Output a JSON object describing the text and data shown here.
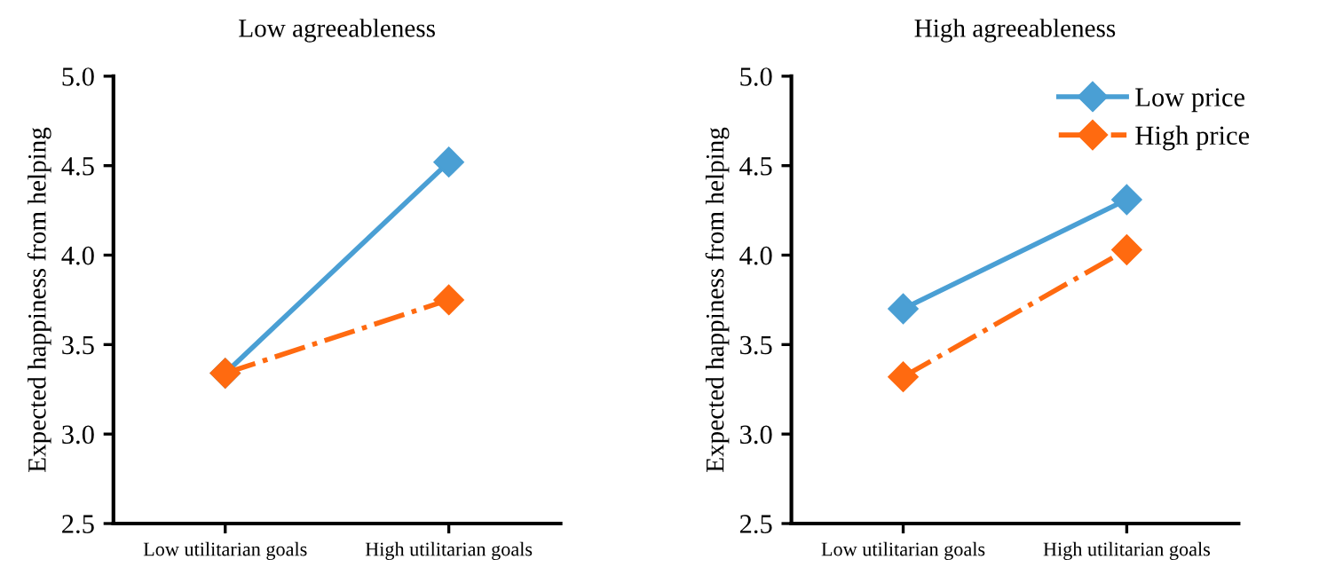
{
  "chart_data": [
    {
      "type": "line",
      "title": "Low agreeableness",
      "ylabel": "Expected happiness from helping",
      "categories": [
        "Low utilitarian goals",
        "High utilitarian goals"
      ],
      "series": [
        {
          "color": "#4a9fd4",
          "values": [
            3.34,
            4.52
          ],
          "line_style": "solid"
        },
        {
          "color": "#ff6a10",
          "values": [
            3.34,
            3.75
          ],
          "line_style": "dashdot"
        }
      ],
      "ylim": [
        2.5,
        5.0
      ],
      "yticks": [
        {
          "value": 2.5,
          "label": "2.5"
        },
        {
          "value": 3.0,
          "label": "3.0"
        },
        {
          "value": 3.5,
          "label": "3.5"
        },
        {
          "value": 4.0,
          "label": "4.0"
        },
        {
          "value": 4.5,
          "label": "4.5"
        },
        {
          "value": 5.0,
          "label": "5.0"
        }
      ],
      "marker": "diamond",
      "grid": false,
      "legend": false
    },
    {
      "type": "line",
      "title": "High agreeableness",
      "ylabel": "Expected happiness from helping",
      "categories": [
        "Low utilitarian goals",
        "High utilitarian goals"
      ],
      "series": [
        {
          "name": "Low price",
          "color": "#4a9fd4",
          "values": [
            3.7,
            4.31
          ],
          "line_style": "solid"
        },
        {
          "name": "High price",
          "color": "#ff6a10",
          "values": [
            3.32,
            4.03
          ],
          "line_style": "dashdot"
        }
      ],
      "ylim": [
        2.5,
        5.0
      ],
      "yticks": [
        {
          "value": 2.5,
          "label": "2.5"
        },
        {
          "value": 3.0,
          "label": "3.0"
        },
        {
          "value": 3.5,
          "label": "3.5"
        },
        {
          "value": 4.0,
          "label": "4.0"
        },
        {
          "value": 4.5,
          "label": "4.5"
        },
        {
          "value": 5.0,
          "label": "5.0"
        }
      ],
      "marker": "diamond",
      "grid": false,
      "legend": "top right"
    }
  ]
}
